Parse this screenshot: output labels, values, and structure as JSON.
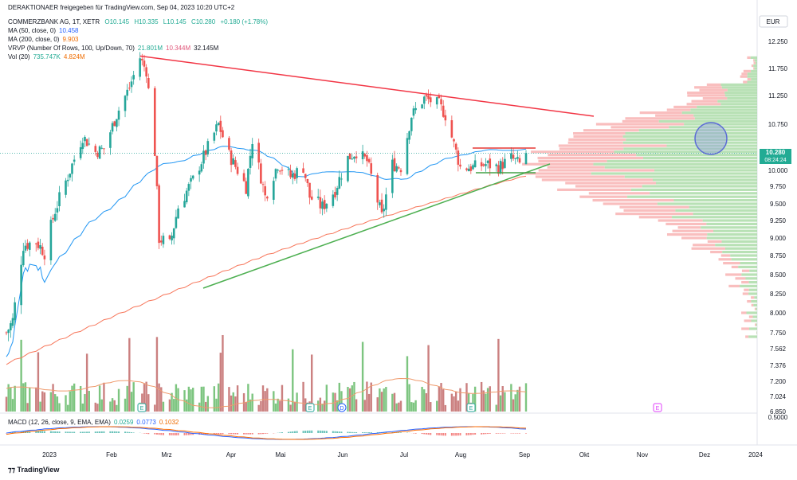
{
  "header": {
    "author": "DERAKTIONAER freigegeben für TradingView.com, Sep 04, 2023 10:20 UTC+2",
    "symbol": "COMMERZBANK AG, 1T, XETR",
    "o": "O10.145",
    "h": "H10.335",
    "l": "L10.145",
    "c": "C10.280",
    "chg": "+0.180 (+1.78%)",
    "ma50_label": "MA (50, close, 0)",
    "ma50_val": "10.458",
    "ma200_label": "MA (200, close, 0)",
    "ma200_val": "9.903",
    "vrvp_label": "VRVP (Number Of Rows, 100, Up/Down, 70)",
    "vrvp_up": "21.801M",
    "vrvp_down": "10.344M",
    "vrvp_total": "32.145M",
    "vol_label": "Vol (20)",
    "vol_val": "735.747K",
    "vol_ma": "4.824M",
    "macd_label": "MACD (12, 26, close, 9, EMA, EMA)",
    "macd_v1": "0.0259",
    "macd_v2": "0.0773",
    "macd_v3": "0.1032"
  },
  "currency": "EUR",
  "current_price_label": "10.280",
  "countdown": "08:24:24",
  "brand": "TradingView",
  "colors": {
    "up": "#26a69a",
    "down": "#ef5350",
    "ma50": "#2196f3",
    "ma200": "#f7765a",
    "resistance": "#f23645",
    "support": "#4caf50",
    "vol_up": "#66bb6a",
    "vol_down": "#c26a6a",
    "circle": "#5b6bd6"
  },
  "chart_data": {
    "type": "candlestick",
    "x_labels": [
      "2023",
      "Feb",
      "Mrz",
      "Apr",
      "Mai",
      "Jun",
      "Jul",
      "Aug",
      "Sep",
      "Okt",
      "Nov",
      "Dez",
      "2024"
    ],
    "y_ticks": [
      "12.250",
      "11.750",
      "11.250",
      "10.750",
      "10.000",
      "9.750",
      "9.500",
      "9.250",
      "9.000",
      "8.750",
      "8.500",
      "8.250",
      "8.000",
      "7.750",
      "7.562",
      "7.376",
      "7.200",
      "7.024",
      "6.850"
    ],
    "macd_tick": "0.5000",
    "ohlc_anchors_close": [
      [
        "2023-01-02",
        7.75
      ],
      [
        "2023-01-05",
        7.9
      ],
      [
        "2023-01-10",
        8.9
      ],
      [
        "2023-01-16",
        8.95
      ],
      [
        "2023-01-20",
        8.8
      ],
      [
        "2023-01-25",
        9.4
      ],
      [
        "2023-02-01",
        10.0
      ],
      [
        "2023-02-07",
        10.55
      ],
      [
        "2023-02-13",
        10.3
      ],
      [
        "2023-02-17",
        10.35
      ],
      [
        "2023-02-24",
        11.0
      ],
      [
        "2023-03-01",
        11.4
      ],
      [
        "2023-03-06",
        11.95
      ],
      [
        "2023-03-09",
        11.7
      ],
      [
        "2023-03-13",
        10.3
      ],
      [
        "2023-03-15",
        9.0
      ],
      [
        "2023-03-20",
        8.9
      ],
      [
        "2023-03-24",
        9.45
      ],
      [
        "2023-03-31",
        9.85
      ],
      [
        "2023-04-06",
        10.3
      ],
      [
        "2023-04-12",
        10.75
      ],
      [
        "2023-04-17",
        10.25
      ],
      [
        "2023-04-25",
        9.75
      ],
      [
        "2023-04-28",
        10.5
      ],
      [
        "2023-05-04",
        9.6
      ],
      [
        "2023-05-10",
        10.1
      ],
      [
        "2023-05-16",
        9.9
      ],
      [
        "2023-05-22",
        10.05
      ],
      [
        "2023-05-25",
        9.6
      ],
      [
        "2023-05-31",
        9.45
      ],
      [
        "2023-06-06",
        9.7
      ],
      [
        "2023-06-12",
        10.2
      ],
      [
        "2023-06-16",
        10.3
      ],
      [
        "2023-06-21",
        10.15
      ],
      [
        "2023-06-28",
        9.3
      ],
      [
        "2023-07-03",
        10.1
      ],
      [
        "2023-07-07",
        10.05
      ],
      [
        "2023-07-12",
        10.9
      ],
      [
        "2023-07-18",
        11.2
      ],
      [
        "2023-07-25",
        11.1
      ],
      [
        "2023-07-28",
        10.9
      ],
      [
        "2023-08-02",
        10.3
      ],
      [
        "2023-08-04",
        10.05
      ],
      [
        "2023-08-10",
        10.05
      ],
      [
        "2023-08-16",
        10.1
      ],
      [
        "2023-08-22",
        10.05
      ],
      [
        "2023-08-28",
        10.2
      ],
      [
        "2023-09-01",
        10.1
      ],
      [
        "2023-09-04",
        10.28
      ]
    ],
    "ma50_last": 10.458,
    "ma200_last": 9.903,
    "last_close": 10.28,
    "last_change": 0.18,
    "last_change_pct": 1.78
  }
}
